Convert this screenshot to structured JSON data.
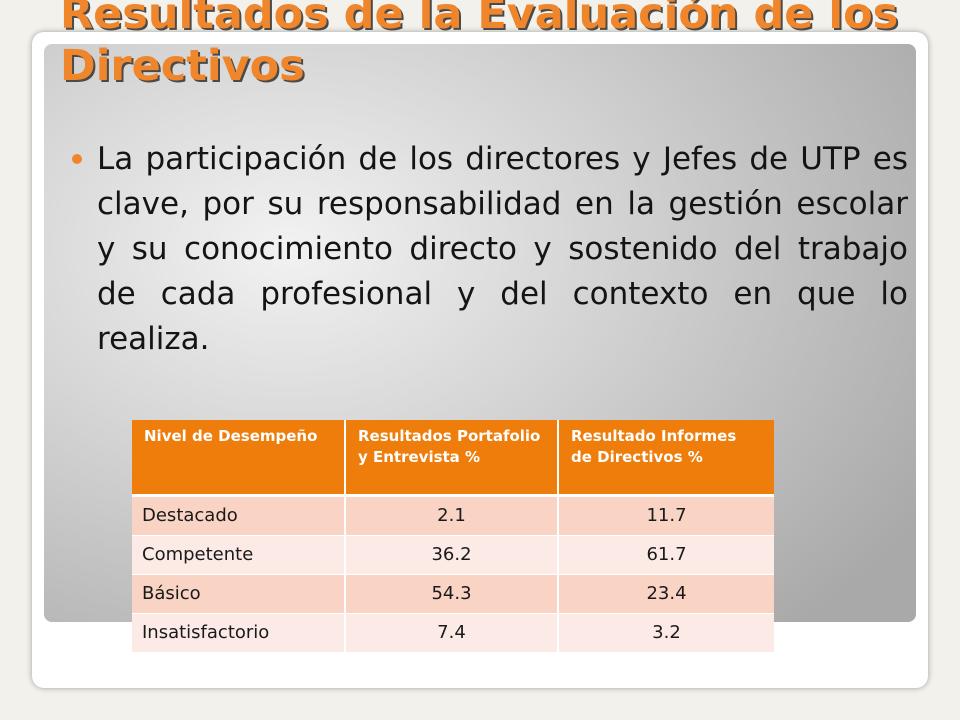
{
  "slide": {
    "title": "Resultados de la Evaluación de los Directivos",
    "bullet": "La participación de los directores y Jefes de UTP es clave, por su responsabilidad en la gestión escolar y su conocimiento directo y sostenido del trabajo de cada profesional y del contexto en que lo realiza."
  },
  "table": {
    "headers": [
      "Nivel de Desempeño",
      "Resultados Portafolio y Entrevista  %",
      "Resultado Informes de Directivos  %"
    ],
    "rows": [
      {
        "level": "Destacado",
        "portafolio": "2.1",
        "informes": "11.7"
      },
      {
        "level": "Competente",
        "portafolio": "36.2",
        "informes": "61.7"
      },
      {
        "level": "Básico",
        "portafolio": "54.3",
        "informes": "23.4"
      },
      {
        "level": "Insatisfactorio",
        "portafolio": "7.4",
        "informes": "3.2"
      }
    ]
  },
  "colors": {
    "accent": "#f0862c",
    "table_header": "#ee7d0c",
    "row_odd": "#f9d3c4",
    "row_even": "#fbeae5"
  }
}
